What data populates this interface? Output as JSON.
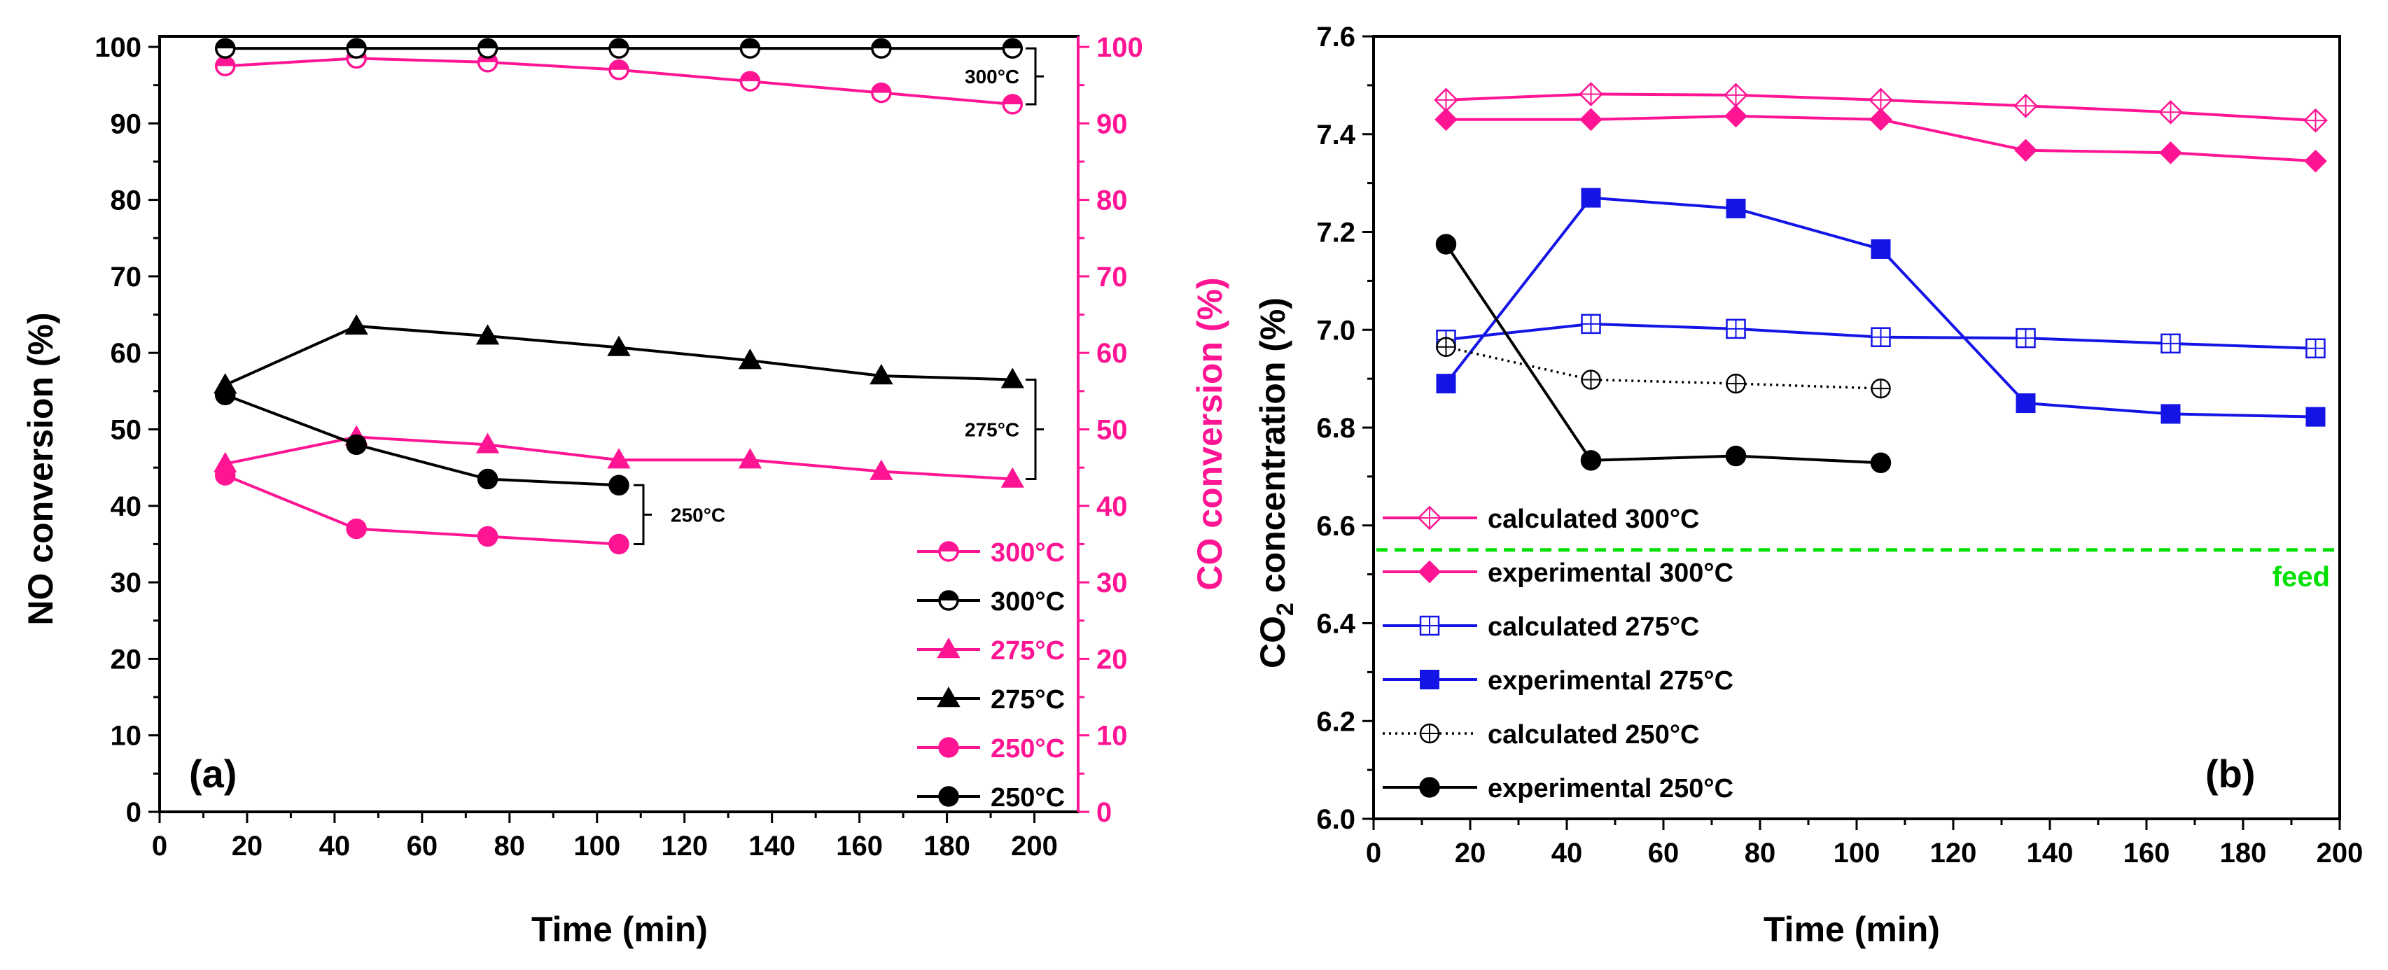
{
  "figure": {
    "panels": [
      "(a)",
      "(b)"
    ]
  },
  "chart_data": [
    {
      "id": "a",
      "type": "line",
      "panel_label": "(a)",
      "xlabel": "Time (min)",
      "ylabel": "NO conversion (%)",
      "y2label": "CO conversion (%)",
      "xlim": [
        0,
        210
      ],
      "ylim": [
        0,
        100
      ],
      "y2lim": [
        0,
        100
      ],
      "xticks": [
        0,
        20,
        40,
        60,
        80,
        100,
        120,
        140,
        160,
        180,
        200
      ],
      "yticks": [
        0,
        10,
        20,
        30,
        40,
        50,
        60,
        70,
        80,
        90,
        100
      ],
      "y2ticks": [
        0,
        10,
        20,
        30,
        40,
        50,
        60,
        70,
        80,
        90,
        100
      ],
      "colors": {
        "pink": "#ff1493",
        "black": "#000000"
      },
      "series": [
        {
          "name": "300°C",
          "axis": "right",
          "color": "#ff1493",
          "marker": "half-circle",
          "line": "solid",
          "x": [
            15,
            45,
            75,
            105,
            135,
            165,
            195
          ],
          "y": [
            97.5,
            98.5,
            98,
            97,
            95.5,
            94,
            92.5
          ]
        },
        {
          "name": "300°C",
          "axis": "left",
          "color": "#000000",
          "marker": "half-circle",
          "line": "solid",
          "x": [
            15,
            45,
            75,
            105,
            135,
            165,
            195
          ],
          "y": [
            99.8,
            99.8,
            99.8,
            99.8,
            99.8,
            99.8,
            99.8
          ]
        },
        {
          "name": "275°C",
          "axis": "right",
          "color": "#ff1493",
          "marker": "triangle",
          "line": "solid",
          "x": [
            15,
            45,
            75,
            105,
            135,
            165,
            195
          ],
          "y": [
            45.5,
            49,
            48,
            46,
            46,
            44.5,
            43.5
          ]
        },
        {
          "name": "275°C",
          "axis": "left",
          "color": "#000000",
          "marker": "triangle",
          "line": "solid",
          "x": [
            15,
            45,
            75,
            105,
            135,
            165,
            195
          ],
          "y": [
            55.8,
            63.5,
            62.2,
            60.7,
            59,
            57,
            56.5
          ]
        },
        {
          "name": "250°C",
          "axis": "right",
          "color": "#ff1493",
          "marker": "circle",
          "line": "solid",
          "x": [
            15,
            45,
            75,
            105
          ],
          "y": [
            44,
            37,
            36,
            35
          ]
        },
        {
          "name": "250°C",
          "axis": "left",
          "color": "#000000",
          "marker": "circle",
          "line": "solid",
          "x": [
            15,
            45,
            75,
            105
          ],
          "y": [
            54.5,
            48,
            43.5,
            42.7
          ]
        }
      ],
      "annotations": [
        {
          "text": "300°C",
          "group": "300"
        },
        {
          "text": "275°C",
          "group": "275"
        },
        {
          "text": "250°C",
          "group": "250"
        }
      ],
      "legend_position": "bottom-right"
    },
    {
      "id": "b",
      "type": "line",
      "panel_label": "(b)",
      "xlabel": "Time (min)",
      "ylabel_main": "CO",
      "ylabel_sub": "2",
      "ylabel_rest": " concentration (%)",
      "xlim": [
        0,
        200
      ],
      "ylim": [
        6.0,
        7.6
      ],
      "xticks": [
        0,
        20,
        40,
        60,
        80,
        100,
        120,
        140,
        160,
        180,
        200
      ],
      "yticks": [
        "6.0",
        "6.2",
        "6.4",
        "6.6",
        "6.8",
        "7.0",
        "7.2",
        "7.4",
        "7.6"
      ],
      "feed": {
        "label": "feed",
        "y": 6.55,
        "color": "#00e000"
      },
      "series": [
        {
          "name": "calculated 300°C",
          "color": "#ff1493",
          "marker": "diamond-open",
          "line": "solid",
          "x": [
            15,
            45,
            75,
            105,
            135,
            165,
            195
          ],
          "y": [
            7.47,
            7.482,
            7.48,
            7.47,
            7.458,
            7.445,
            7.428
          ]
        },
        {
          "name": "experimental 300°C",
          "color": "#ff1493",
          "marker": "diamond-filled",
          "line": "solid",
          "x": [
            15,
            45,
            75,
            105,
            135,
            165,
            195
          ],
          "y": [
            7.43,
            7.43,
            7.437,
            7.43,
            7.367,
            7.362,
            7.345
          ]
        },
        {
          "name": "calculated 275°C",
          "color": "#1414e6",
          "marker": "square-open",
          "line": "solid",
          "x": [
            15,
            45,
            75,
            105,
            135,
            165,
            195
          ],
          "y": [
            6.98,
            7.012,
            7.002,
            6.985,
            6.983,
            6.972,
            6.962
          ]
        },
        {
          "name": "experimental 275°C",
          "color": "#1414e6",
          "marker": "square-filled",
          "line": "solid",
          "x": [
            15,
            45,
            75,
            105,
            135,
            165,
            195
          ],
          "y": [
            6.89,
            7.27,
            7.248,
            7.165,
            6.85,
            6.828,
            6.822
          ]
        },
        {
          "name": "calculated 250°C",
          "color": "#000000",
          "marker": "circle-open",
          "line": "dotted",
          "x": [
            15,
            45,
            75,
            105
          ],
          "y": [
            6.965,
            6.898,
            6.89,
            6.88
          ]
        },
        {
          "name": "experimental 250°C",
          "color": "#000000",
          "marker": "circle-filled",
          "line": "solid",
          "x": [
            15,
            45,
            75,
            105
          ],
          "y": [
            7.175,
            6.733,
            6.742,
            6.728
          ]
        }
      ],
      "legend_position": "left"
    }
  ]
}
